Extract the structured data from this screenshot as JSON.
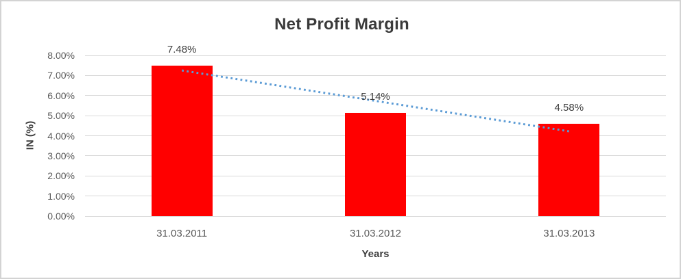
{
  "colors": {
    "bar": "#FF0000",
    "trendline": "#5B9BD5",
    "gridline": "#D9D9D9",
    "title_text": "#3A3A3A",
    "axis_text": "#595959",
    "data_label_text": "#404040",
    "frame_border": "#D3D3D3",
    "background": "#FFFFFF"
  },
  "chart_data": {
    "type": "bar",
    "title": "Net Profit Margin",
    "xlabel": "Years",
    "ylabel": "IN (%)",
    "categories": [
      "31.03.2011",
      "31.03.2012",
      "31.03.2013"
    ],
    "values": [
      7.48,
      5.14,
      4.58
    ],
    "data_labels": [
      "7.48%",
      "5.14%",
      "4.58%"
    ],
    "y_ticks": [
      "0.00%",
      "1.00%",
      "2.00%",
      "3.00%",
      "4.00%",
      "5.00%",
      "6.00%",
      "7.00%",
      "8.00%"
    ],
    "ylim": [
      0,
      8
    ],
    "grid": true,
    "legend": "none",
    "bar_color": "#FF0000",
    "trendline": {
      "type": "linear",
      "style": "dotted",
      "color": "#5B9BD5",
      "start_category": "31.03.2011",
      "start_value": 7.25,
      "end_category": "31.03.2013",
      "end_value": 4.22
    }
  }
}
